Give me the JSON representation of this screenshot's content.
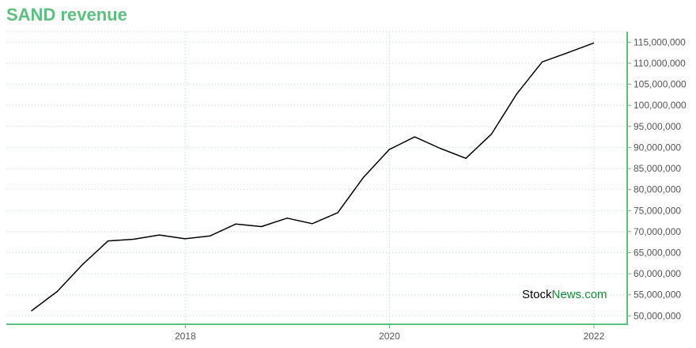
{
  "title": "SAND revenue",
  "watermark": {
    "part1": "Stock",
    "part2": "News.com"
  },
  "colors": {
    "accent": "#5cbf7f",
    "line": "#000000",
    "grid": "#b9dcc6",
    "watermark_news": "#1a8a3a"
  },
  "chart_data": {
    "type": "line",
    "title": "SAND revenue",
    "xlabel": "",
    "ylabel": "",
    "x_ticks": [
      "2018",
      "2020",
      "2022"
    ],
    "y_ticks": [
      "50,000,000",
      "55,000,000",
      "60,000,000",
      "65,000,000",
      "70,000,000",
      "75,000,000",
      "80,000,000",
      "85,000,000",
      "90,000,000",
      "95,000,000",
      "100,000,000",
      "105,000,000",
      "110,000,000",
      "115,000,000"
    ],
    "ylim": [
      48000000,
      117500000
    ],
    "xlim": [
      "2016-04-01",
      "2022-04-30"
    ],
    "y_axis_position": "right",
    "grid": true,
    "legend": "none",
    "series": [
      {
        "x": [
          "2016-06-30",
          "2016-09-30",
          "2016-12-31",
          "2017-03-31",
          "2017-06-30",
          "2017-09-30",
          "2017-12-31",
          "2018-03-31",
          "2018-06-30",
          "2018-09-30",
          "2018-12-31",
          "2019-03-31",
          "2019-06-30",
          "2019-09-30",
          "2019-12-31",
          "2020-03-31",
          "2020-06-30",
          "2020-09-30",
          "2020-12-31",
          "2021-03-31",
          "2021-06-30",
          "2021-09-30",
          "2021-12-31"
        ],
        "values": [
          51200000,
          55800000,
          62300000,
          67800000,
          68200000,
          69200000,
          68300000,
          69000000,
          71800000,
          71200000,
          73200000,
          71900000,
          74500000,
          82900000,
          89500000,
          92500000,
          89800000,
          87400000,
          93200000,
          102700000,
          110300000,
          112500000,
          114800000
        ]
      }
    ]
  }
}
